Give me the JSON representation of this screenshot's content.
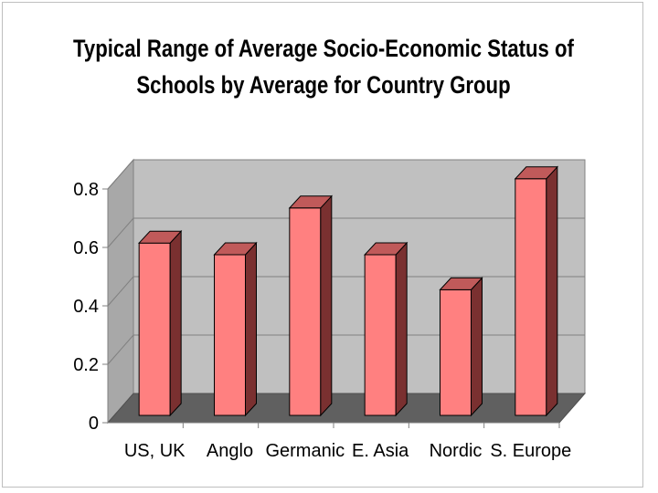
{
  "chart_data": {
    "type": "bar",
    "title_line1": "Typical Range of Average Socio-Economic Status of",
    "title_line2": "Schools by Average for Country Group",
    "categories": [
      "US, UK",
      "Anglo",
      "Germanic",
      "E. Asia",
      "Nordic",
      "S. Europe"
    ],
    "values": [
      0.59,
      0.55,
      0.71,
      0.55,
      0.43,
      0.81
    ],
    "yticks": [
      "0",
      "0.2",
      "0.4",
      "0.6",
      "0.8"
    ],
    "ylim": [
      0,
      0.8
    ],
    "grid": true,
    "colors": {
      "bar_front": "#ff8080",
      "bar_top": "#c05a5a",
      "bar_side": "#7a3030",
      "wall": "#c0c0c0",
      "floor": "#606060"
    }
  }
}
